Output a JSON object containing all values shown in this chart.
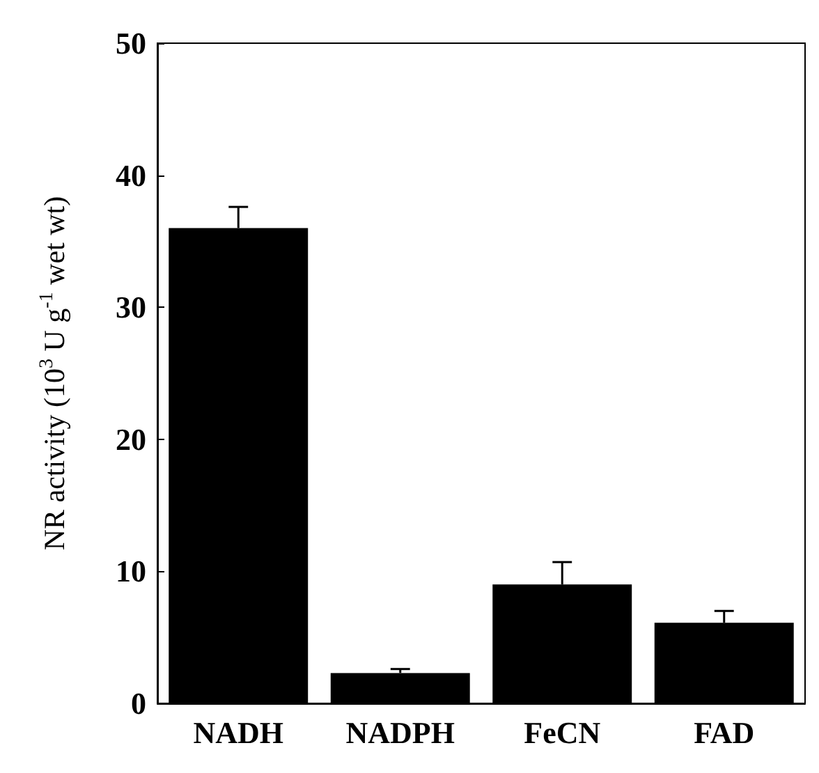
{
  "chart_data": {
    "type": "bar",
    "ylabel": "NR activity (10$^{3}$ U g$^{-1}$ wet wt)",
    "categories": [
      "NADH",
      "NADPH",
      "FeCN",
      "FAD"
    ],
    "values": [
      36.0,
      2.3,
      9.0,
      6.1
    ],
    "color": "#000000",
    "errors": [
      [
        36.0,
        37.6
      ],
      [
        2.3,
        2.6
      ],
      [
        9.0,
        10.7
      ],
      [
        6.1,
        7.0
      ]
    ],
    "ylim": [
      0,
      50
    ],
    "yticks": [
      0,
      10,
      20,
      30,
      40,
      50
    ],
    "grid": false
  }
}
